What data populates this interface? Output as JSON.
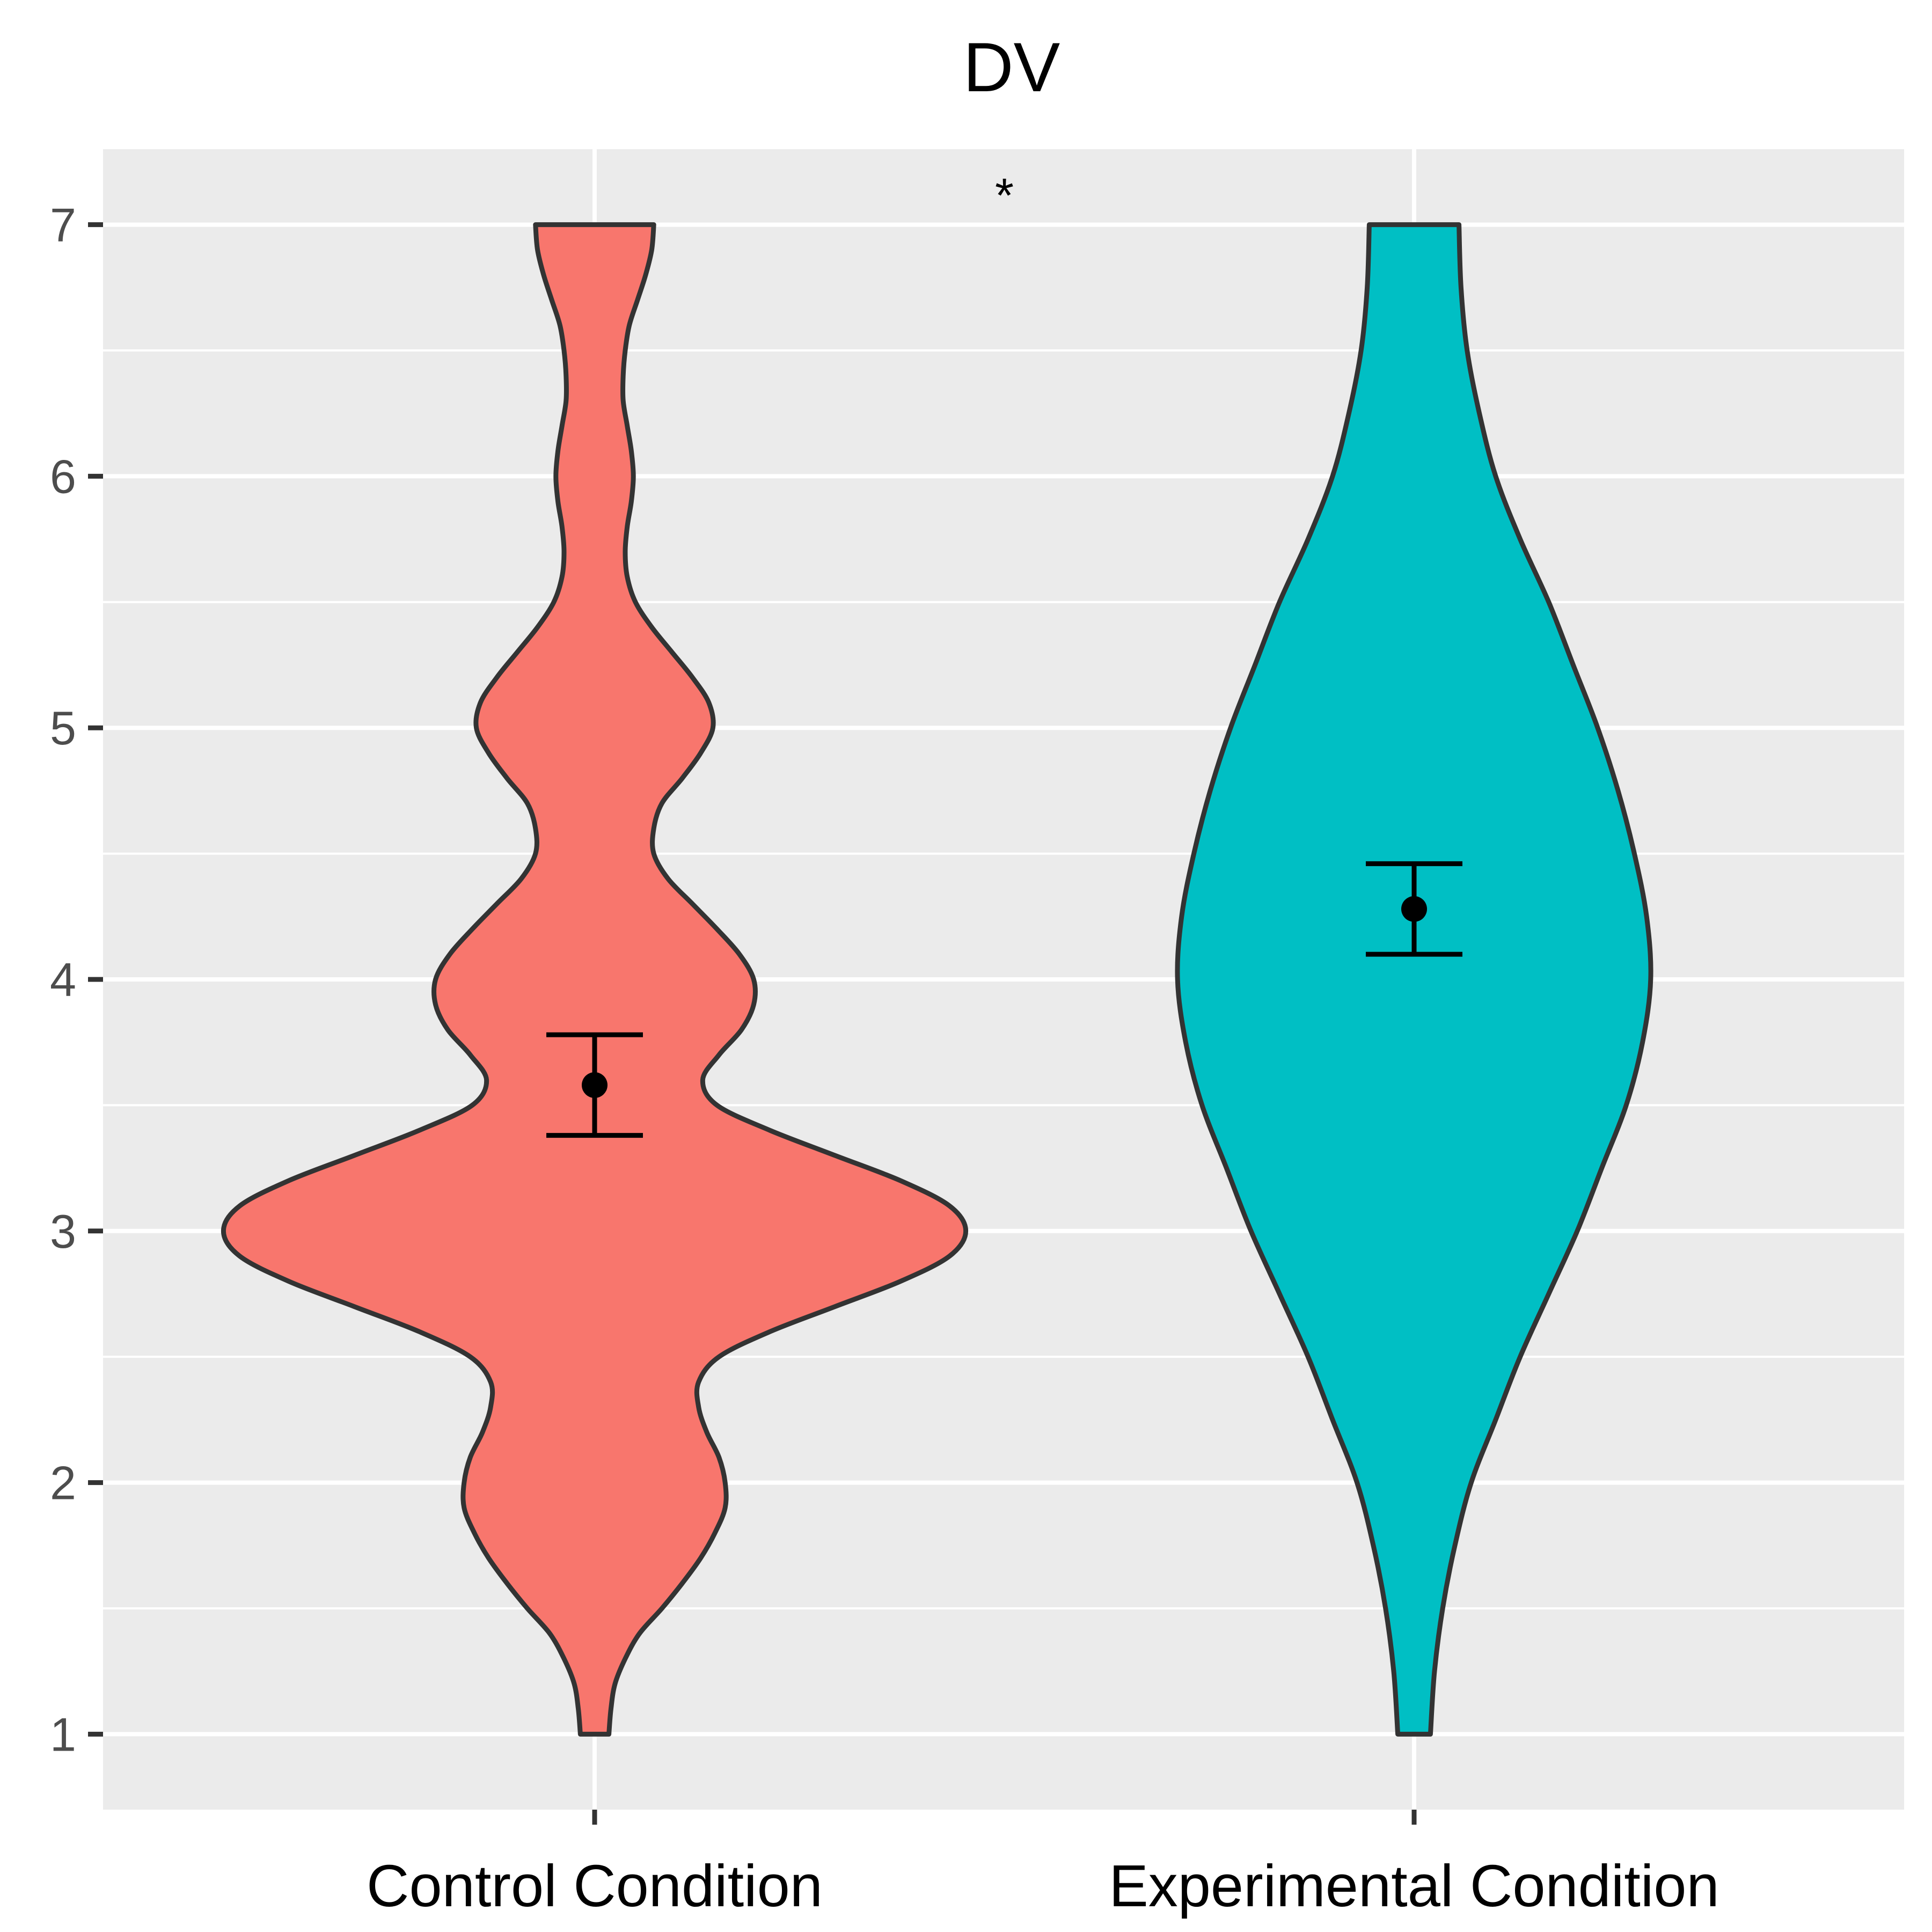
{
  "chart_data": {
    "type": "violin",
    "title": "DV",
    "xlabel": "",
    "ylabel": "",
    "ylim": [
      0.7,
      7.3
    ],
    "y_ticks": [
      "1",
      "2",
      "3",
      "4",
      "5",
      "6",
      "7"
    ],
    "y_tick_values": [
      1,
      2,
      3,
      4,
      5,
      6,
      7
    ],
    "categories": [
      "Control Condition",
      "Experimental Condition"
    ],
    "grid": true,
    "annotation": "*",
    "colors": {
      "panel": "#ebebeb",
      "grid": "#ffffff",
      "outline": "#333333",
      "control": "#F8766D",
      "experimental": "#00BFC4"
    },
    "series": [
      {
        "category": "Control Condition",
        "mean": 3.58,
        "ci_low": 3.38,
        "ci_high": 3.78,
        "density": [
          [
            1.0,
            0.035
          ],
          [
            1.1,
            0.04
          ],
          [
            1.2,
            0.05
          ],
          [
            1.3,
            0.075
          ],
          [
            1.4,
            0.11
          ],
          [
            1.5,
            0.165
          ],
          [
            1.6,
            0.215
          ],
          [
            1.7,
            0.26
          ],
          [
            1.8,
            0.295
          ],
          [
            1.9,
            0.32
          ],
          [
            2.0,
            0.32
          ],
          [
            2.1,
            0.305
          ],
          [
            2.2,
            0.275
          ],
          [
            2.3,
            0.255
          ],
          [
            2.4,
            0.255
          ],
          [
            2.5,
            0.305
          ],
          [
            2.6,
            0.43
          ],
          [
            2.7,
            0.59
          ],
          [
            2.8,
            0.75
          ],
          [
            2.9,
            0.87
          ],
          [
            3.0,
            0.91
          ],
          [
            3.1,
            0.87
          ],
          [
            3.2,
            0.75
          ],
          [
            3.3,
            0.59
          ],
          [
            3.4,
            0.43
          ],
          [
            3.5,
            0.3
          ],
          [
            3.6,
            0.265
          ],
          [
            3.7,
            0.305
          ],
          [
            3.8,
            0.36
          ],
          [
            3.9,
            0.39
          ],
          [
            4.0,
            0.39
          ],
          [
            4.1,
            0.355
          ],
          [
            4.2,
            0.3
          ],
          [
            4.3,
            0.24
          ],
          [
            4.4,
            0.18
          ],
          [
            4.5,
            0.145
          ],
          [
            4.6,
            0.145
          ],
          [
            4.7,
            0.165
          ],
          [
            4.8,
            0.215
          ],
          [
            4.9,
            0.26
          ],
          [
            5.0,
            0.29
          ],
          [
            5.1,
            0.28
          ],
          [
            5.2,
            0.24
          ],
          [
            5.3,
            0.19
          ],
          [
            5.4,
            0.14
          ],
          [
            5.5,
            0.1
          ],
          [
            5.6,
            0.08
          ],
          [
            5.7,
            0.075
          ],
          [
            5.8,
            0.08
          ],
          [
            5.9,
            0.09
          ],
          [
            6.0,
            0.095
          ],
          [
            6.1,
            0.09
          ],
          [
            6.2,
            0.08
          ],
          [
            6.3,
            0.07
          ],
          [
            6.4,
            0.07
          ],
          [
            6.5,
            0.075
          ],
          [
            6.6,
            0.085
          ],
          [
            6.7,
            0.105
          ],
          [
            6.8,
            0.125
          ],
          [
            6.9,
            0.14
          ],
          [
            7.0,
            0.145
          ]
        ]
      },
      {
        "category": "Experimental Condition",
        "mean": 4.28,
        "ci_low": 4.1,
        "ci_high": 4.46,
        "density": [
          [
            1.0,
            0.04
          ],
          [
            1.25,
            0.05
          ],
          [
            1.5,
            0.07
          ],
          [
            1.75,
            0.1
          ],
          [
            2.0,
            0.14
          ],
          [
            2.25,
            0.2
          ],
          [
            2.5,
            0.26
          ],
          [
            2.75,
            0.33
          ],
          [
            3.0,
            0.4
          ],
          [
            3.25,
            0.46
          ],
          [
            3.5,
            0.52
          ],
          [
            3.75,
            0.56
          ],
          [
            4.0,
            0.58
          ],
          [
            4.25,
            0.57
          ],
          [
            4.5,
            0.54
          ],
          [
            4.75,
            0.5
          ],
          [
            5.0,
            0.45
          ],
          [
            5.25,
            0.39
          ],
          [
            5.5,
            0.33
          ],
          [
            5.75,
            0.26
          ],
          [
            6.0,
            0.2
          ],
          [
            6.25,
            0.16
          ],
          [
            6.5,
            0.13
          ],
          [
            6.75,
            0.115
          ],
          [
            7.0,
            0.11
          ]
        ]
      }
    ]
  }
}
